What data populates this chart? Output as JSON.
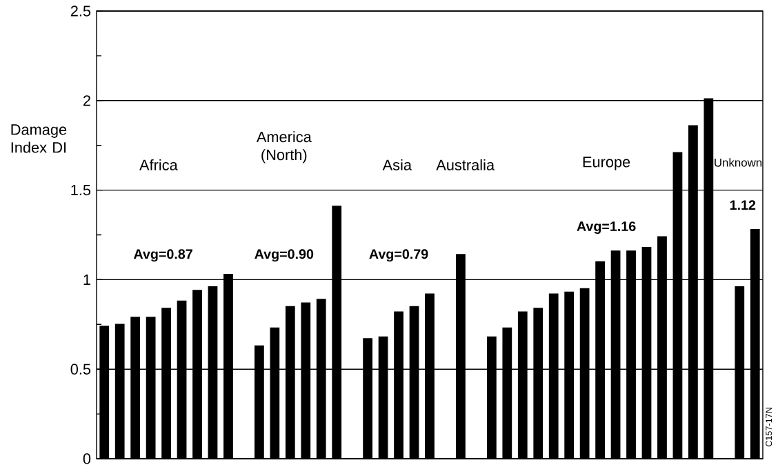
{
  "chart_data": {
    "type": "bar",
    "ylabel": "Damage Index DI",
    "categories": [
      null,
      null,
      null,
      null,
      null,
      null,
      null,
      null,
      null,
      null,
      null,
      null,
      null,
      null,
      null,
      null,
      null,
      null,
      null,
      null,
      null,
      null,
      null,
      null,
      null,
      null,
      null,
      null,
      null,
      null,
      null,
      null,
      null,
      null,
      null,
      null,
      null,
      null,
      null,
      null,
      null,
      null,
      null
    ],
    "values": [
      0.74,
      0.75,
      0.79,
      0.79,
      0.84,
      0.88,
      0.94,
      0.96,
      1.03,
      null,
      0.63,
      0.73,
      0.85,
      0.87,
      0.89,
      1.41,
      null,
      0.67,
      0.68,
      0.82,
      0.85,
      0.92,
      null,
      1.14,
      null,
      0.68,
      0.73,
      0.82,
      0.84,
      0.92,
      0.93,
      0.95,
      1.1,
      1.16,
      1.16,
      1.18,
      1.24,
      1.71,
      1.86,
      2.01,
      null,
      0.96,
      1.28
    ],
    "color": "#000000",
    "ylim": [
      0,
      2.5
    ],
    "yticks": [
      0,
      {
        "value": 0.25,
        "label": null
      },
      0.5,
      {
        "value": 0.75,
        "label": null
      },
      1,
      {
        "value": 1.25,
        "label": null
      },
      1.5,
      {
        "value": 1.75,
        "label": null
      },
      2,
      {
        "value": 2.25,
        "label": null
      },
      2.5
    ],
    "grid": "y",
    "annotations": [
      "Africa",
      "America (North)",
      "Asia",
      "Australia",
      "Europe",
      "Unknown",
      "Avg=0.87",
      "Avg=0.90",
      "Avg=0.79",
      "Avg=1.16",
      "1.12",
      "C157-17N"
    ]
  }
}
